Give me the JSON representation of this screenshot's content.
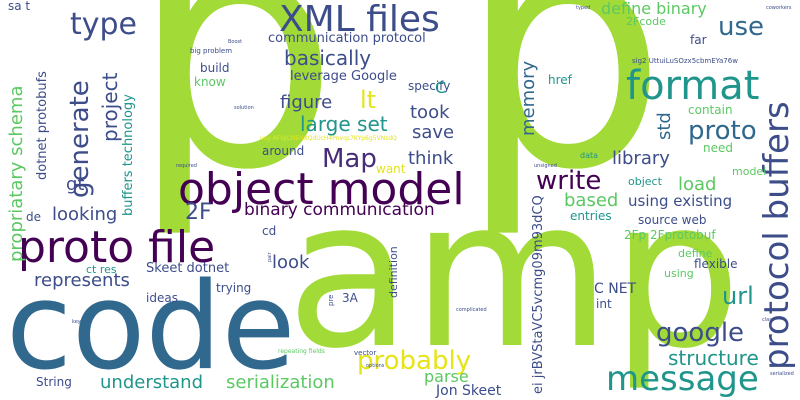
{
  "palette": {
    "background": "#ffffff",
    "lime": "#a2da37",
    "light_green": "#5cc863",
    "teal": "#1f958b",
    "dark_teal": "#24878e",
    "steel_blue": "#31688e",
    "indigo": "#3d4d8a",
    "dark_purple": "#440154",
    "purple": "#472c7a",
    "yellow": "#e5e419",
    "green": "#35b779"
  },
  "words": [
    {
      "text": "p",
      "color": "#a2da37"
    },
    {
      "text": "p",
      "color": "#a2da37"
    },
    {
      "text": "amp",
      "color": "#a2da37"
    },
    {
      "text": "code",
      "color": "#31688e"
    },
    {
      "text": "object model",
      "color": "#440154"
    },
    {
      "text": "proto file",
      "color": "#440154"
    },
    {
      "text": "XML files",
      "color": "#3d4d8a"
    },
    {
      "text": "format",
      "color": "#1f958b"
    },
    {
      "text": "protocol buffers",
      "color": "#3d4d8a"
    },
    {
      "text": "message",
      "color": "#1f958b"
    },
    {
      "text": "type",
      "color": "#3d4d8a"
    },
    {
      "text": "generate",
      "color": "#3d4d8a"
    },
    {
      "text": "probably",
      "color": "#e5e419"
    },
    {
      "text": "proto",
      "color": "#31688e"
    },
    {
      "text": "write",
      "color": "#440154"
    },
    {
      "text": "Map",
      "color": "#472c7a"
    },
    {
      "text": "use",
      "color": "#31688e"
    },
    {
      "text": "google",
      "color": "#3d4d8a"
    },
    {
      "text": "url",
      "color": "#1f958b"
    },
    {
      "text": "structure",
      "color": "#1f958b"
    },
    {
      "text": "define binary",
      "color": "#5cc863"
    },
    {
      "text": "propriatary schema",
      "color": "#5cc863"
    },
    {
      "text": "2F",
      "color": "#3d4d8a"
    },
    {
      "text": "lt",
      "color": "#e5e419"
    },
    {
      "text": "large set",
      "color": "#1f958b"
    },
    {
      "text": "basically",
      "color": "#3d4d8a"
    },
    {
      "text": "project",
      "color": "#3d4d8a"
    },
    {
      "text": "memory",
      "color": "#31688e"
    },
    {
      "text": "serialization",
      "color": "#5cc863"
    },
    {
      "text": "understand",
      "color": "#1f958b"
    },
    {
      "text": "represents",
      "color": "#3d4d8a"
    },
    {
      "text": "think",
      "color": "#3d4d8a"
    },
    {
      "text": "library",
      "color": "#3d4d8a"
    },
    {
      "text": "binary communication",
      "color": "#440154"
    },
    {
      "text": "parse",
      "color": "#5cc863"
    },
    {
      "text": "save",
      "color": "#3d4d8a"
    },
    {
      "text": "took",
      "color": "#3d4d8a"
    },
    {
      "text": "figure",
      "color": "#3d4d8a"
    },
    {
      "text": "looking",
      "color": "#3d4d8a"
    },
    {
      "text": "look",
      "color": "#3d4d8a"
    },
    {
      "text": "load",
      "color": "#5cc863"
    },
    {
      "text": "based",
      "color": "#5cc863"
    },
    {
      "text": "std",
      "color": "#31688e"
    },
    {
      "text": "gt",
      "color": "#3d4d8a"
    },
    {
      "text": "using existing",
      "color": "#3d4d8a"
    },
    {
      "text": "communication protocol",
      "color": "#3d4d8a"
    },
    {
      "text": "leverage Google",
      "color": "#3d4d8a"
    },
    {
      "text": "C NET",
      "color": "#3d4d8a"
    },
    {
      "text": "Jon Skeet",
      "color": "#3d4d8a"
    },
    {
      "text": "Skeet dotnet",
      "color": "#3d4d8a"
    },
    {
      "text": "dotnet protobufs",
      "color": "#3d4d8a"
    },
    {
      "text": "buffers technology",
      "color": "#1f958b"
    },
    {
      "text": "ei jrBVStaVC5vcmg09m93dCQ",
      "color": "#3d4d8a"
    },
    {
      "text": "specify",
      "color": "#3d4d8a"
    },
    {
      "text": "build",
      "color": "#3d4d8a"
    },
    {
      "text": "know",
      "color": "#5cc863"
    },
    {
      "text": "want",
      "color": "#e5e419"
    },
    {
      "text": "around",
      "color": "#3d4d8a"
    },
    {
      "text": "C",
      "color": "#1f958b"
    },
    {
      "text": "href",
      "color": "#1f958b"
    },
    {
      "text": "far",
      "color": "#3d4d8a"
    },
    {
      "text": "contain",
      "color": "#5cc863"
    },
    {
      "text": "need",
      "color": "#5cc863"
    },
    {
      "text": "2Fcode",
      "color": "#5cc863"
    },
    {
      "text": "source web",
      "color": "#3d4d8a"
    },
    {
      "text": "2Fp 2Fprotobuf",
      "color": "#5cc863"
    },
    {
      "text": "define",
      "color": "#5cc863"
    },
    {
      "text": "flexible",
      "color": "#3d4d8a"
    },
    {
      "text": "entries",
      "color": "#1f958b"
    },
    {
      "text": "using",
      "color": "#5cc863"
    },
    {
      "text": "object",
      "color": "#1f958b"
    },
    {
      "text": "model",
      "color": "#5cc863"
    },
    {
      "text": "int",
      "color": "#3d4d8a"
    },
    {
      "text": "trying",
      "color": "#3d4d8a"
    },
    {
      "text": "ideas",
      "color": "#3d4d8a"
    },
    {
      "text": "3A",
      "color": "#3d4d8a"
    },
    {
      "text": "cd",
      "color": "#3d4d8a"
    },
    {
      "text": "ct res",
      "color": "#1f958b"
    },
    {
      "text": "de",
      "color": "#3d4d8a"
    },
    {
      "text": "String",
      "color": "#3d4d8a"
    },
    {
      "text": "sa t",
      "color": "#3d4d8a"
    },
    {
      "text": "definition",
      "color": "#3d4d8a"
    },
    {
      "text": "data",
      "color": "#1f958b"
    },
    {
      "text": "big problem",
      "color": "#3d4d8a"
    },
    {
      "text": "sig2 UttuiLuSOzx5cbmEYa76w",
      "color": "#3d4d8a"
    },
    {
      "text": "usg AFQjCNEHXQdUcH4Pnvqs7KYp6g5VNzdQ",
      "color": "#e5e419"
    },
    {
      "text": "repeating fields",
      "color": "#5cc863"
    },
    {
      "text": "vector",
      "color": "#3d4d8a"
    },
    {
      "text": "pre",
      "color": "#3d4d8a"
    },
    {
      "text": "class",
      "color": "#3d4d8a"
    },
    {
      "text": "complicated",
      "color": "#3d4d8a"
    },
    {
      "text": "serialized",
      "color": "#3d4d8a"
    },
    {
      "text": "required",
      "color": "#3d4d8a"
    },
    {
      "text": "unsigned",
      "color": "#3d4d8a"
    },
    {
      "text": "pair",
      "color": "#3d4d8a"
    },
    {
      "text": "Boost",
      "color": "#3d4d8a"
    },
    {
      "text": "solution",
      "color": "#3d4d8a"
    },
    {
      "text": "options",
      "color": "#3d4d8a"
    },
    {
      "text": "key",
      "color": "#3d4d8a"
    },
    {
      "text": "typed",
      "color": "#3d4d8a"
    },
    {
      "text": "coworkers",
      "color": "#3d4d8a"
    }
  ]
}
